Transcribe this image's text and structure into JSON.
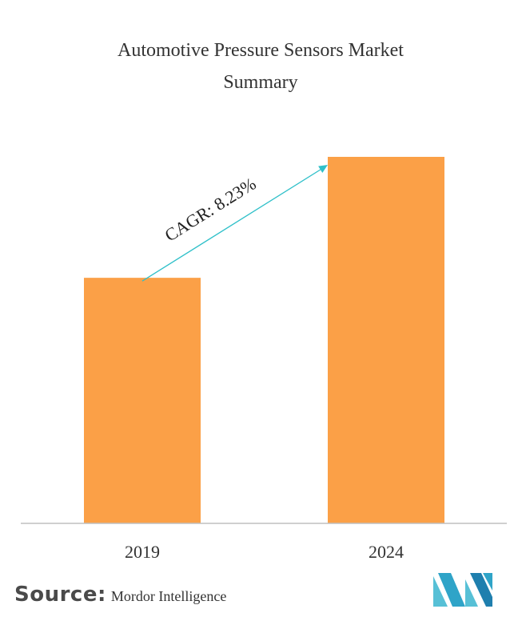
{
  "chart_data": {
    "type": "bar",
    "title": "Automotive Pressure Sensors Market Summary",
    "title_lines": [
      "Automotive Pressure Sensors Market",
      "Summary"
    ],
    "categories": [
      "2019",
      "2024"
    ],
    "values": [
      67,
      100
    ],
    "ylim": [
      0,
      100
    ],
    "xlabel": "",
    "ylabel": "",
    "grid": false,
    "annotation": {
      "text": "CAGR: 8.23%",
      "from_category": "2019",
      "to_category": "2024"
    },
    "colors": {
      "bar": "#FBA047",
      "axis": "#BFBFBF",
      "arrow": "#2FC0C9"
    }
  },
  "source": {
    "label": "Source:",
    "name": "Mordor Intelligence"
  },
  "logo": {
    "icon": "mordor-intelligence-logo-icon",
    "colors": [
      "#2FA4C8",
      "#57C0D6",
      "#1F7FAE"
    ]
  }
}
